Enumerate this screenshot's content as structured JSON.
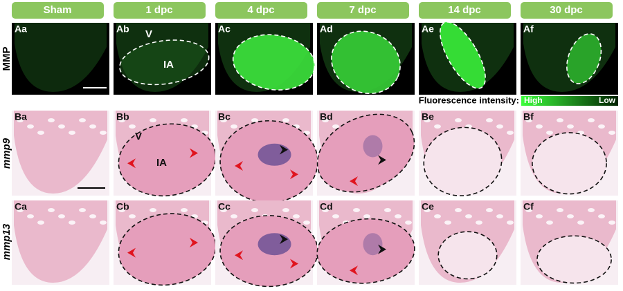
{
  "columns": [
    "Sham",
    "1 dpc",
    "4 dpc",
    "7 dpc",
    "14 dpc",
    "30 dpc"
  ],
  "rows": [
    {
      "label": "MMP",
      "panels": [
        "Aa",
        "Ab",
        "Ac",
        "Ad",
        "Ae",
        "Af"
      ]
    },
    {
      "label": "mmp9",
      "panels": [
        "Ba",
        "Bb",
        "Bc",
        "Bd",
        "Be",
        "Bf"
      ]
    },
    {
      "label": "mmp13",
      "panels": [
        "Ca",
        "Cb",
        "Cc",
        "Cd",
        "Ce",
        "Cf"
      ]
    }
  ],
  "annotations": {
    "ventricle": "V",
    "injury_area": "IA"
  },
  "legend": {
    "title": "Fluorescence intensity:",
    "high": "High",
    "low": "Low"
  }
}
